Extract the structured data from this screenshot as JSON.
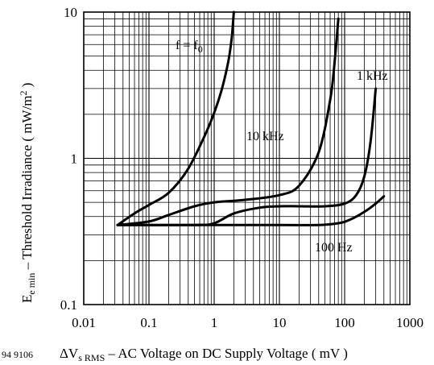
{
  "chart_data": {
    "type": "line",
    "figure_id": "94 9106",
    "xscale": "log",
    "yscale": "log",
    "xlim": [
      0.01,
      1000
    ],
    "ylim": [
      0.1,
      10
    ],
    "grid": true,
    "xticks": [
      {
        "value": 0.01,
        "label": "0.01"
      },
      {
        "value": 0.1,
        "label": "0.1"
      },
      {
        "value": 1,
        "label": "1"
      },
      {
        "value": 10,
        "label": "10"
      },
      {
        "value": 100,
        "label": "100"
      },
      {
        "value": 1000,
        "label": "1000"
      }
    ],
    "yticks": [
      {
        "value": 0.1,
        "label": "0.1"
      },
      {
        "value": 1,
        "label": "1"
      },
      {
        "value": 10,
        "label": "10"
      }
    ],
    "xlabel": {
      "symbol": "ΔV",
      "subscript": "s RMS",
      "dash": " – ",
      "text": "AC Voltage on DC Supply Voltage ( mV )"
    },
    "ylabel": {
      "symbol": "E",
      "subscript": "e min",
      "text": " – Threshold Irradiance ( mW/m",
      "superscript": "2",
      "close": " )"
    },
    "series": [
      {
        "name": "f = f0",
        "label_main": "f = f",
        "label_sub": "0",
        "points": [
          [
            0.033,
            0.35
          ],
          [
            0.06,
            0.42
          ],
          [
            0.1,
            0.48
          ],
          [
            0.2,
            0.58
          ],
          [
            0.4,
            0.85
          ],
          [
            0.8,
            1.6
          ],
          [
            1.2,
            2.6
          ],
          [
            1.6,
            4.3
          ],
          [
            1.85,
            6.5
          ],
          [
            2.0,
            10
          ]
        ]
      },
      {
        "name": "10 kHz",
        "label_main": "10 kHz",
        "points": [
          [
            0.033,
            0.35
          ],
          [
            0.1,
            0.37
          ],
          [
            0.2,
            0.41
          ],
          [
            0.5,
            0.47
          ],
          [
            1,
            0.5
          ],
          [
            3,
            0.52
          ],
          [
            10,
            0.56
          ],
          [
            20,
            0.65
          ],
          [
            40,
            1.1
          ],
          [
            60,
            2.5
          ],
          [
            70,
            4.5
          ],
          [
            80,
            9
          ]
        ]
      },
      {
        "name": "1 kHz",
        "label_main": "1 kHz",
        "points": [
          [
            0.033,
            0.35
          ],
          [
            0.5,
            0.35
          ],
          [
            1,
            0.36
          ],
          [
            2,
            0.42
          ],
          [
            5,
            0.46
          ],
          [
            10,
            0.47
          ],
          [
            20,
            0.47
          ],
          [
            50,
            0.47
          ],
          [
            100,
            0.49
          ],
          [
            150,
            0.56
          ],
          [
            200,
            0.75
          ],
          [
            250,
            1.3
          ],
          [
            300,
            3
          ]
        ]
      },
      {
        "name": "100 Hz",
        "label_main": "100 Hz",
        "points": [
          [
            0.033,
            0.35
          ],
          [
            1,
            0.35
          ],
          [
            10,
            0.35
          ],
          [
            40,
            0.35
          ],
          [
            80,
            0.36
          ],
          [
            120,
            0.38
          ],
          [
            200,
            0.43
          ],
          [
            300,
            0.49
          ],
          [
            400,
            0.55
          ]
        ]
      }
    ]
  }
}
